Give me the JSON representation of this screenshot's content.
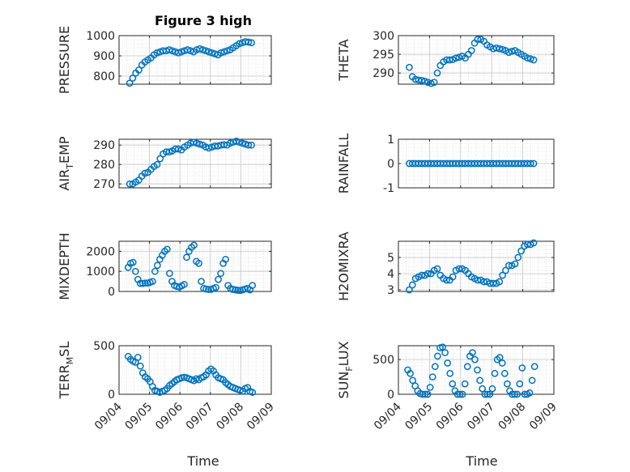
{
  "figure": {
    "title": "Figure 3 high"
  },
  "x_axis": {
    "ticks": [
      "09/04",
      "09/05",
      "09/06",
      "09/07",
      "09/08",
      "09/09"
    ],
    "label": "Time"
  },
  "colors": {
    "marker": "#0072bd",
    "grid": "#d0d0d0",
    "axis": "#262626"
  },
  "chart_data": [
    {
      "type": "scatter",
      "id": "pressure",
      "ylabel": "PRESSURE",
      "ylim": [
        760,
        1000
      ],
      "yticks": [
        "1000",
        "900",
        "800"
      ],
      "ytick_values": [
        1000,
        900,
        800
      ],
      "x": [
        0.35,
        0.45,
        0.55,
        0.65,
        0.75,
        0.85,
        0.95,
        1.05,
        1.15,
        1.25,
        1.35,
        1.45,
        1.55,
        1.65,
        1.75,
        1.85,
        1.95,
        2.05,
        2.15,
        2.25,
        2.35,
        2.45,
        2.55,
        2.65,
        2.75,
        2.85,
        2.95,
        3.05,
        3.15,
        3.25,
        3.35,
        3.45,
        3.55,
        3.65,
        3.75,
        3.85,
        3.95,
        4.05,
        4.15,
        4.25,
        4.35
      ],
      "y": [
        765,
        790,
        815,
        830,
        855,
        870,
        880,
        890,
        905,
        915,
        920,
        925,
        925,
        930,
        925,
        920,
        915,
        920,
        925,
        930,
        925,
        920,
        930,
        935,
        930,
        925,
        920,
        915,
        910,
        905,
        915,
        920,
        925,
        930,
        940,
        950,
        960,
        965,
        970,
        968,
        965
      ]
    },
    {
      "type": "scatter",
      "id": "theta",
      "ylabel": "THETA",
      "ylim": [
        287,
        300
      ],
      "yticks": [
        "300",
        "295",
        "290"
      ],
      "ytick_values": [
        300,
        295,
        290
      ],
      "x": [
        0.35,
        0.45,
        0.55,
        0.65,
        0.75,
        0.85,
        0.95,
        1.05,
        1.15,
        1.25,
        1.35,
        1.45,
        1.55,
        1.65,
        1.75,
        1.85,
        1.95,
        2.05,
        2.15,
        2.25,
        2.35,
        2.45,
        2.55,
        2.65,
        2.75,
        2.85,
        2.95,
        3.05,
        3.15,
        3.25,
        3.35,
        3.45,
        3.55,
        3.65,
        3.75,
        3.85,
        3.95,
        4.05,
        4.15,
        4.25,
        4.35
      ],
      "y": [
        291.5,
        289,
        288.3,
        288.1,
        288,
        287.8,
        287.5,
        287.2,
        287.5,
        290,
        292,
        293,
        293.5,
        293.5,
        293.6,
        294,
        294.2,
        294.5,
        294,
        295,
        296,
        298,
        299,
        299,
        298.5,
        297.5,
        297,
        296.5,
        296.7,
        296.5,
        296.3,
        296,
        295.5,
        295.8,
        296,
        295.5,
        295,
        294.5,
        294,
        293.8,
        293.5
      ]
    },
    {
      "type": "scatter",
      "id": "air_temp",
      "ylabel": "AIR_TEMP",
      "ylim": [
        268,
        293
      ],
      "yticks": [
        "290",
        "280",
        "270"
      ],
      "ytick_values": [
        290,
        280,
        270
      ],
      "x": [
        0.35,
        0.45,
        0.55,
        0.65,
        0.75,
        0.85,
        0.95,
        1.05,
        1.15,
        1.25,
        1.35,
        1.45,
        1.55,
        1.65,
        1.75,
        1.85,
        1.95,
        2.05,
        2.15,
        2.25,
        2.35,
        2.45,
        2.55,
        2.65,
        2.75,
        2.85,
        2.95,
        3.05,
        3.15,
        3.25,
        3.35,
        3.45,
        3.55,
        3.65,
        3.75,
        3.85,
        3.95,
        4.05,
        4.15,
        4.25,
        4.35
      ],
      "y": [
        270,
        270,
        271,
        272,
        274,
        275.5,
        276,
        277.5,
        279,
        280,
        283,
        285.5,
        286.5,
        286.5,
        287,
        288,
        288,
        287.5,
        289,
        290,
        291,
        291.5,
        291,
        290.5,
        290,
        289,
        288.5,
        289,
        289.5,
        289.5,
        290,
        290.2,
        290,
        291,
        291.5,
        292,
        291.5,
        291,
        290.5,
        290,
        290
      ]
    },
    {
      "type": "scatter",
      "id": "rainfall",
      "ylabel": "RAINFALL",
      "ylim": [
        -1,
        1
      ],
      "yticks": [
        "1",
        "0",
        "-1"
      ],
      "ytick_values": [
        1,
        0,
        -1
      ],
      "x": [
        0.35,
        0.45,
        0.55,
        0.65,
        0.75,
        0.85,
        0.95,
        1.05,
        1.15,
        1.25,
        1.35,
        1.45,
        1.55,
        1.65,
        1.75,
        1.85,
        1.95,
        2.05,
        2.15,
        2.25,
        2.35,
        2.45,
        2.55,
        2.65,
        2.75,
        2.85,
        2.95,
        3.05,
        3.15,
        3.25,
        3.35,
        3.45,
        3.55,
        3.65,
        3.75,
        3.85,
        3.95,
        4.05,
        4.15,
        4.25,
        4.35
      ],
      "y": [
        0,
        0,
        0,
        0,
        0,
        0,
        0,
        0,
        0,
        0,
        0,
        0,
        0,
        0,
        0,
        0,
        0,
        0,
        0,
        0,
        0,
        0,
        0,
        0,
        0,
        0,
        0,
        0,
        0,
        0,
        0,
        0,
        0,
        0,
        0,
        0,
        0,
        0,
        0,
        0,
        0
      ]
    },
    {
      "type": "scatter",
      "id": "mixdepth",
      "ylabel": "MIXDEPTH",
      "ylim": [
        0,
        2500
      ],
      "yticks": [
        "2000",
        "1000",
        "0"
      ],
      "ytick_values": [
        2000,
        1000,
        0
      ],
      "x": [
        0.3,
        0.38,
        0.46,
        0.54,
        0.62,
        0.7,
        0.78,
        0.86,
        0.94,
        1.02,
        1.1,
        1.18,
        1.26,
        1.34,
        1.42,
        1.5,
        1.58,
        1.66,
        1.74,
        1.82,
        1.9,
        1.98,
        2.06,
        2.14,
        2.22,
        2.3,
        2.38,
        2.46,
        2.54,
        2.62,
        2.7,
        2.78,
        2.86,
        2.94,
        3.02,
        3.1,
        3.18,
        3.26,
        3.34,
        3.42,
        3.5,
        3.58,
        3.66,
        3.74,
        3.82,
        3.9,
        3.98,
        4.06,
        4.14,
        4.22,
        4.3,
        4.38
      ],
      "y": [
        1200,
        1400,
        1450,
        1000,
        600,
        400,
        400,
        420,
        420,
        450,
        500,
        1000,
        1300,
        1600,
        1800,
        2000,
        2100,
        900,
        500,
        300,
        250,
        220,
        280,
        350,
        1700,
        2000,
        2200,
        2300,
        1500,
        1400,
        500,
        150,
        120,
        100,
        100,
        150,
        200,
        600,
        900,
        1400,
        1600,
        300,
        150,
        100,
        80,
        60,
        50,
        80,
        120,
        150,
        80,
        300
      ]
    },
    {
      "type": "scatter",
      "id": "h2omixra",
      "ylabel": "H2OMIXRA",
      "ylim": [
        2.9,
        6
      ],
      "yticks": [
        "5",
        "4",
        "3"
      ],
      "ytick_values": [
        5,
        4,
        3
      ],
      "x": [
        0.35,
        0.45,
        0.55,
        0.65,
        0.75,
        0.85,
        0.95,
        1.05,
        1.15,
        1.25,
        1.35,
        1.45,
        1.55,
        1.65,
        1.75,
        1.85,
        1.95,
        2.05,
        2.15,
        2.25,
        2.35,
        2.45,
        2.55,
        2.65,
        2.75,
        2.85,
        2.95,
        3.05,
        3.15,
        3.25,
        3.35,
        3.45,
        3.55,
        3.65,
        3.75,
        3.85,
        3.95,
        4.05,
        4.15,
        4.25,
        4.35
      ],
      "y": [
        3,
        3.3,
        3.7,
        3.8,
        3.9,
        3.9,
        4,
        4,
        4.2,
        4.3,
        3.9,
        3.7,
        3.6,
        3.6,
        3.8,
        4.2,
        4.3,
        4.3,
        4.2,
        4,
        3.8,
        3.7,
        3.6,
        3.6,
        3.5,
        3.5,
        3.4,
        3.4,
        3.4,
        3.5,
        3.9,
        4.2,
        4.5,
        4.5,
        4.6,
        5,
        5.4,
        5.7,
        5.8,
        5.8,
        5.9
      ]
    },
    {
      "type": "scatter",
      "id": "terr_msl",
      "ylabel": "TERR_MSL",
      "ylim": [
        0,
        500
      ],
      "yticks": [
        "500",
        "0"
      ],
      "ytick_values": [
        500,
        0
      ],
      "x": [
        0.3,
        0.38,
        0.46,
        0.54,
        0.62,
        0.7,
        0.78,
        0.86,
        0.94,
        1.02,
        1.1,
        1.18,
        1.26,
        1.34,
        1.42,
        1.5,
        1.58,
        1.66,
        1.74,
        1.82,
        1.9,
        1.98,
        2.06,
        2.14,
        2.22,
        2.3,
        2.38,
        2.46,
        2.54,
        2.62,
        2.7,
        2.78,
        2.86,
        2.94,
        3.02,
        3.1,
        3.18,
        3.26,
        3.34,
        3.42,
        3.5,
        3.58,
        3.66,
        3.74,
        3.82,
        3.9,
        3.98,
        4.06,
        4.14,
        4.22,
        4.3,
        4.38
      ],
      "y": [
        390,
        360,
        340,
        330,
        380,
        290,
        220,
        180,
        160,
        130,
        80,
        40,
        30,
        20,
        30,
        40,
        60,
        90,
        110,
        130,
        150,
        160,
        170,
        175,
        170,
        160,
        150,
        140,
        160,
        150,
        170,
        180,
        200,
        240,
        260,
        240,
        200,
        170,
        160,
        150,
        120,
        100,
        80,
        70,
        60,
        50,
        40,
        30,
        60,
        70,
        30,
        20
      ]
    },
    {
      "type": "scatter",
      "id": "sun_flux",
      "ylabel": "SUN_FLUX",
      "ylim": [
        0,
        700
      ],
      "yticks": [
        "500",
        "0"
      ],
      "ytick_values": [
        500,
        0
      ],
      "x": [
        0.3,
        0.38,
        0.46,
        0.54,
        0.62,
        0.7,
        0.78,
        0.86,
        0.94,
        1.02,
        1.1,
        1.18,
        1.26,
        1.34,
        1.42,
        1.5,
        1.58,
        1.66,
        1.74,
        1.82,
        1.9,
        1.98,
        2.06,
        2.14,
        2.22,
        2.3,
        2.38,
        2.46,
        2.54,
        2.62,
        2.7,
        2.78,
        2.86,
        2.94,
        3.02,
        3.1,
        3.18,
        3.26,
        3.34,
        3.42,
        3.5,
        3.58,
        3.66,
        3.74,
        3.82,
        3.9,
        3.98,
        4.06,
        4.14,
        4.22,
        4.3,
        4.38
      ],
      "y": [
        350,
        300,
        200,
        120,
        50,
        10,
        0,
        0,
        0,
        100,
        250,
        400,
        550,
        670,
        680,
        600,
        450,
        300,
        150,
        50,
        0,
        0,
        0,
        150,
        400,
        550,
        600,
        500,
        350,
        200,
        80,
        0,
        0,
        0,
        80,
        300,
        500,
        530,
        450,
        300,
        150,
        50,
        0,
        0,
        0,
        150,
        380,
        0,
        0,
        20,
        200,
        400
      ]
    }
  ]
}
